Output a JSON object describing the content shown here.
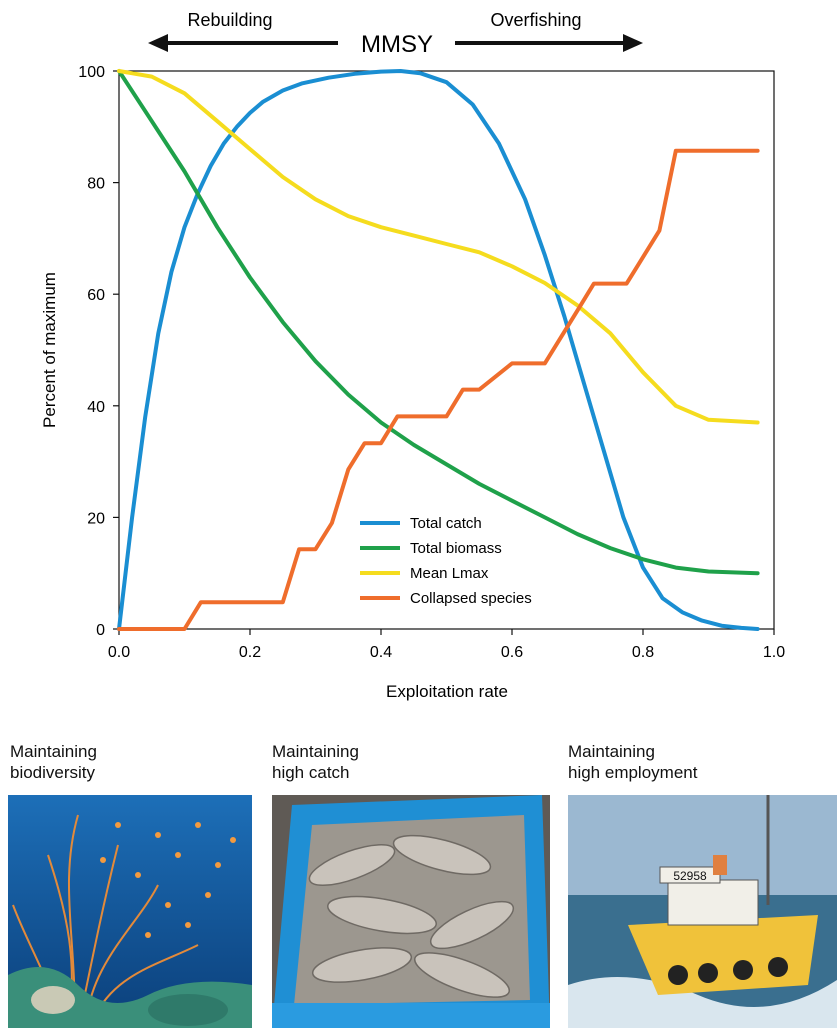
{
  "header": {
    "left_label": "Rebuilding",
    "center_label": "MMSY",
    "right_label": "Overfishing"
  },
  "chart_data": {
    "type": "line",
    "xlabel": "Exploitation rate",
    "ylabel": "Percent of maximum",
    "xlim": [
      0,
      1
    ],
    "ylim": [
      0,
      100
    ],
    "xticks": [
      "0.0",
      "0.2",
      "0.4",
      "0.6",
      "0.8",
      "1.0"
    ],
    "yticks": [
      "0",
      "20",
      "40",
      "60",
      "80",
      "100"
    ],
    "grid": false,
    "legend_position": "bottom-center",
    "series": [
      {
        "name": "Total catch",
        "color": "#1a8ed2",
        "points": [
          [
            0,
            0
          ],
          [
            0.02,
            20
          ],
          [
            0.04,
            38
          ],
          [
            0.06,
            53
          ],
          [
            0.08,
            64
          ],
          [
            0.1,
            72
          ],
          [
            0.12,
            78
          ],
          [
            0.14,
            83
          ],
          [
            0.16,
            87
          ],
          [
            0.18,
            90
          ],
          [
            0.2,
            92.5
          ],
          [
            0.22,
            94.5
          ],
          [
            0.25,
            96.5
          ],
          [
            0.28,
            97.8
          ],
          [
            0.32,
            98.8
          ],
          [
            0.36,
            99.5
          ],
          [
            0.4,
            99.9
          ],
          [
            0.43,
            100
          ],
          [
            0.46,
            99.6
          ],
          [
            0.5,
            98
          ],
          [
            0.54,
            94
          ],
          [
            0.58,
            87
          ],
          [
            0.62,
            77
          ],
          [
            0.65,
            67
          ],
          [
            0.68,
            56
          ],
          [
            0.71,
            44
          ],
          [
            0.74,
            32
          ],
          [
            0.77,
            20
          ],
          [
            0.8,
            11
          ],
          [
            0.83,
            5.5
          ],
          [
            0.86,
            3
          ],
          [
            0.89,
            1.5
          ],
          [
            0.92,
            0.6
          ],
          [
            0.95,
            0.2
          ],
          [
            0.975,
            0
          ]
        ]
      },
      {
        "name": "Total biomass",
        "color": "#1fa14a",
        "points": [
          [
            0,
            100
          ],
          [
            0.05,
            91
          ],
          [
            0.1,
            82
          ],
          [
            0.15,
            72
          ],
          [
            0.2,
            63
          ],
          [
            0.25,
            55
          ],
          [
            0.3,
            48
          ],
          [
            0.35,
            42
          ],
          [
            0.4,
            37
          ],
          [
            0.45,
            33
          ],
          [
            0.5,
            29.5
          ],
          [
            0.55,
            26
          ],
          [
            0.6,
            23
          ],
          [
            0.65,
            20
          ],
          [
            0.7,
            17
          ],
          [
            0.75,
            14.5
          ],
          [
            0.8,
            12.5
          ],
          [
            0.85,
            11
          ],
          [
            0.9,
            10.3
          ],
          [
            0.975,
            10
          ]
        ]
      },
      {
        "name": "Mean Lmax",
        "color": "#f5dc1e",
        "points": [
          [
            0,
            100
          ],
          [
            0.05,
            99
          ],
          [
            0.1,
            96
          ],
          [
            0.15,
            91
          ],
          [
            0.2,
            86
          ],
          [
            0.25,
            81
          ],
          [
            0.3,
            77
          ],
          [
            0.35,
            74
          ],
          [
            0.4,
            72
          ],
          [
            0.45,
            70.5
          ],
          [
            0.5,
            69
          ],
          [
            0.55,
            67.5
          ],
          [
            0.6,
            65
          ],
          [
            0.65,
            62
          ],
          [
            0.7,
            58
          ],
          [
            0.75,
            53
          ],
          [
            0.8,
            46
          ],
          [
            0.85,
            40
          ],
          [
            0.9,
            37.5
          ],
          [
            0.975,
            37
          ]
        ]
      },
      {
        "name": "Collapsed species",
        "color": "#ef6d2c",
        "points": [
          [
            0,
            0
          ],
          [
            0.1,
            0
          ],
          [
            0.125,
            4.8
          ],
          [
            0.25,
            4.8
          ],
          [
            0.275,
            14.3
          ],
          [
            0.3,
            14.3
          ],
          [
            0.325,
            19
          ],
          [
            0.35,
            28.6
          ],
          [
            0.375,
            33.3
          ],
          [
            0.4,
            33.3
          ],
          [
            0.425,
            38.1
          ],
          [
            0.5,
            38.1
          ],
          [
            0.525,
            42.9
          ],
          [
            0.55,
            42.9
          ],
          [
            0.6,
            47.6
          ],
          [
            0.65,
            47.6
          ],
          [
            0.7,
            57.1
          ],
          [
            0.725,
            61.9
          ],
          [
            0.775,
            61.9
          ],
          [
            0.825,
            71.4
          ],
          [
            0.85,
            85.7
          ],
          [
            0.975,
            85.7
          ]
        ]
      }
    ]
  },
  "photos": [
    {
      "caption_line1": "Maintaining",
      "caption_line2": "biodiversity"
    },
    {
      "caption_line1": "Maintaining",
      "caption_line2": "high catch"
    },
    {
      "caption_line1": "Maintaining",
      "caption_line2": "high employment",
      "boat_number": "52958"
    }
  ]
}
